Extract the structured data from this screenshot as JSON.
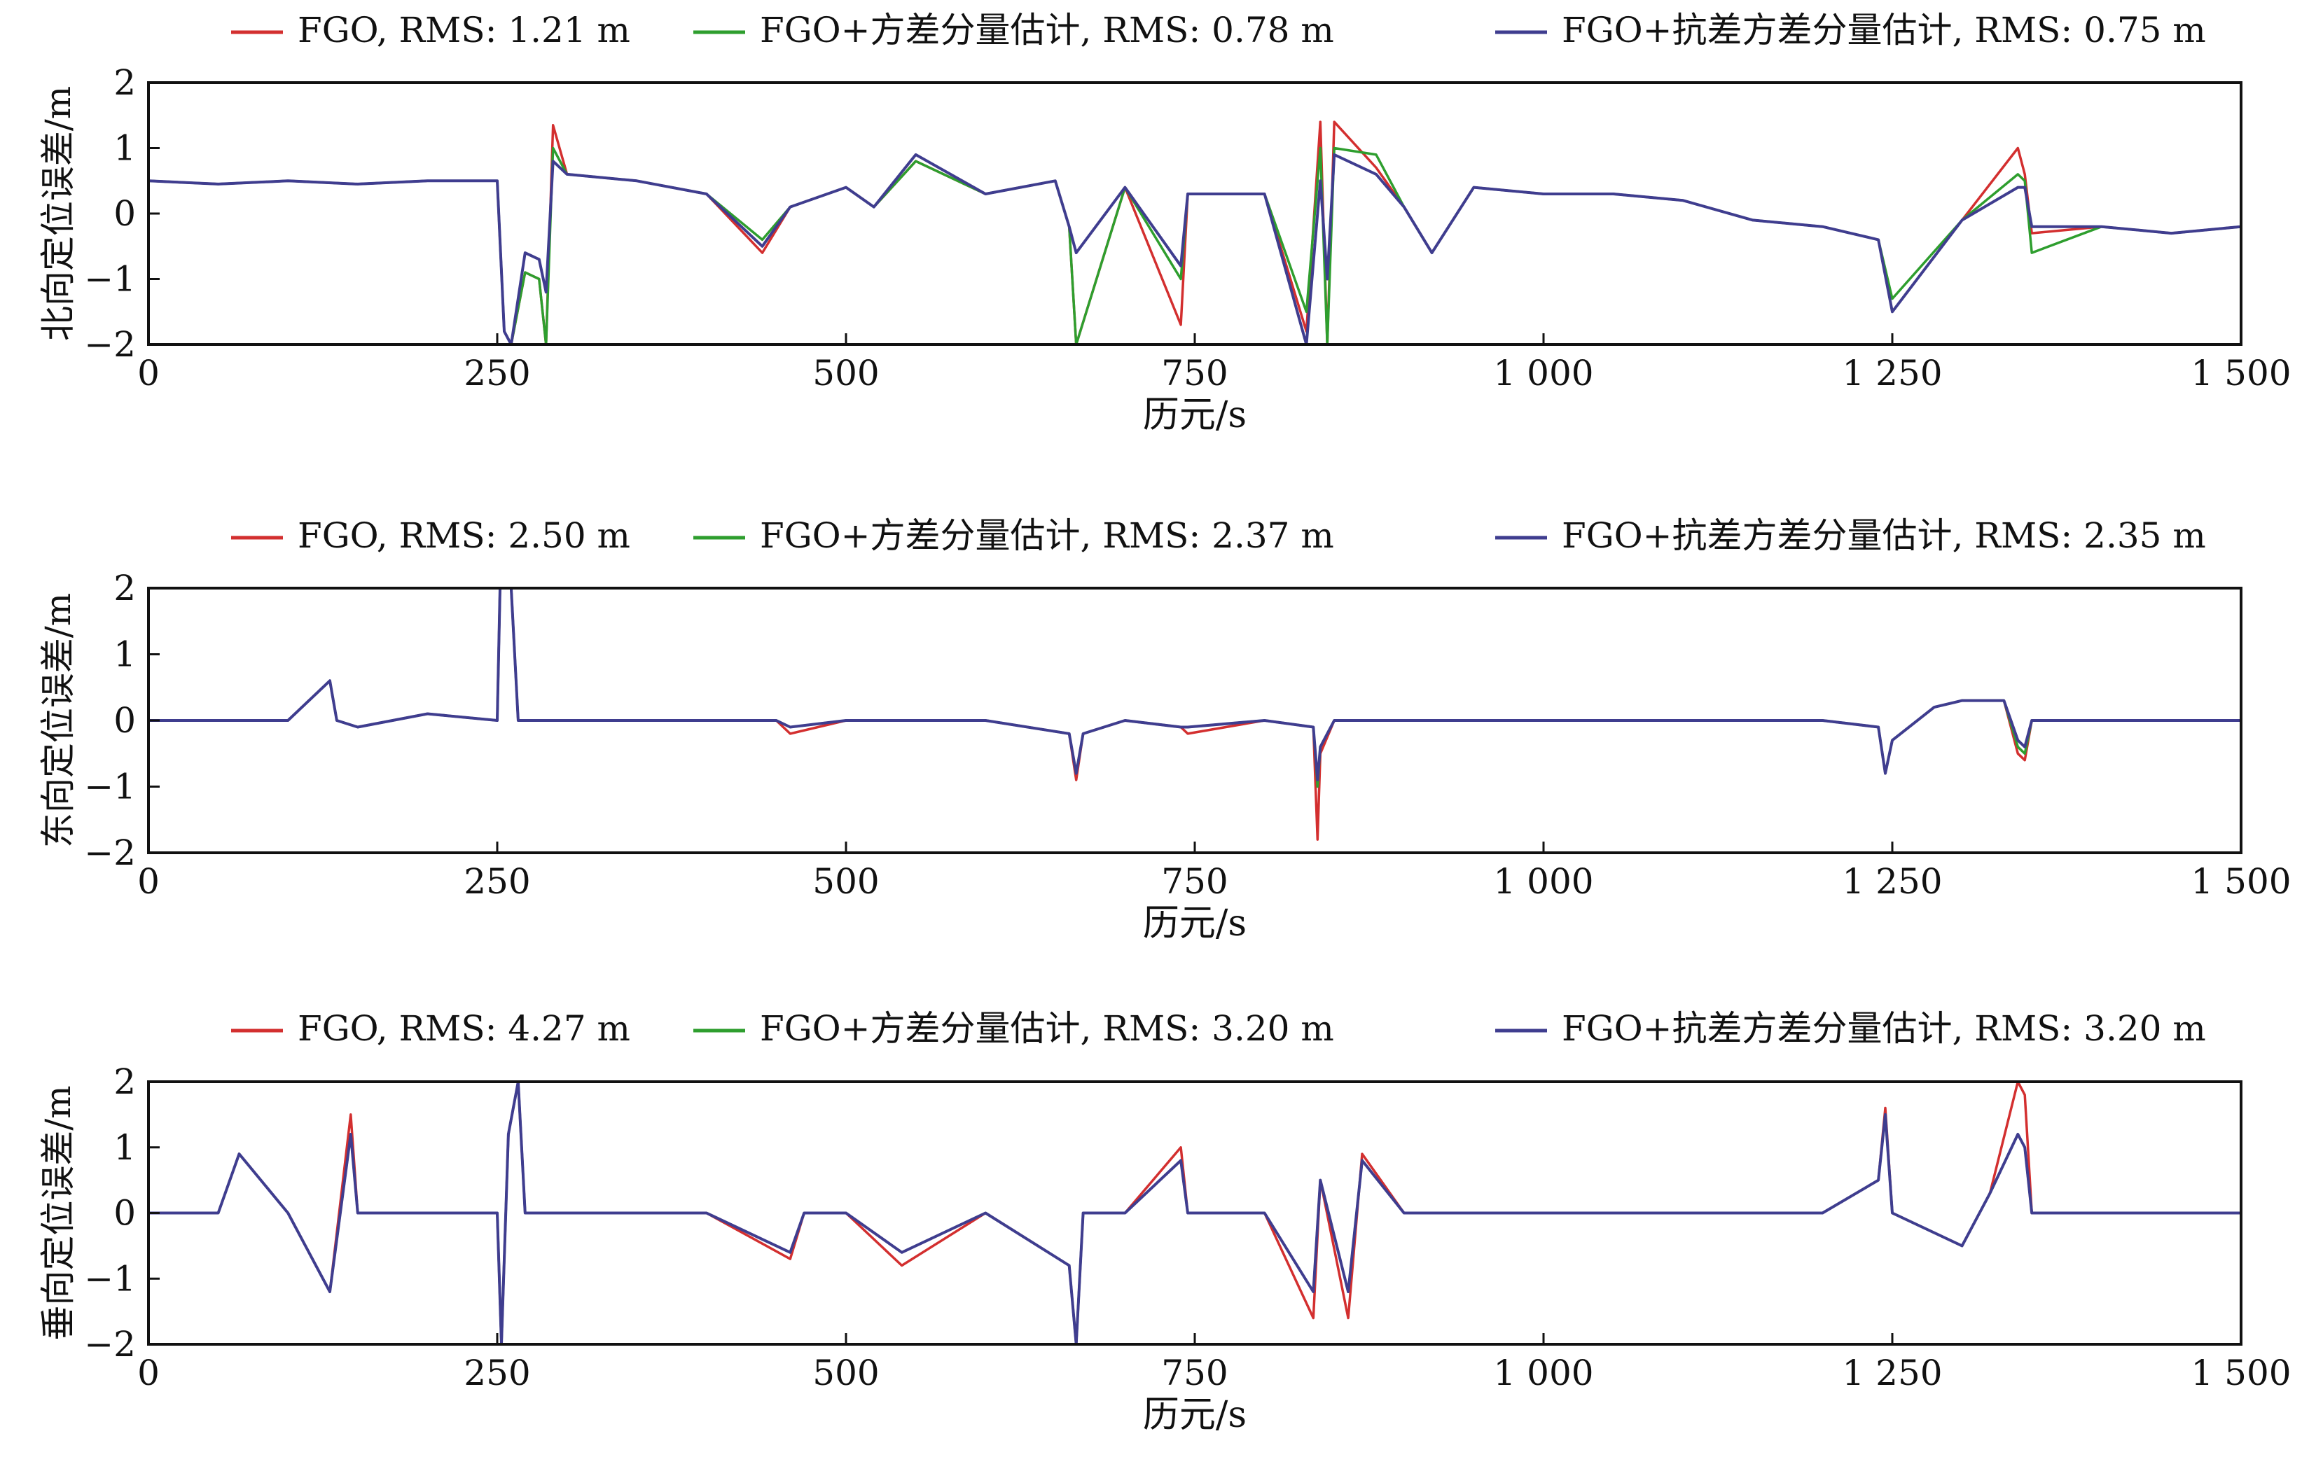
{
  "colors": {
    "FGO": "#d32f2f",
    "VCE": "#2e9e2e",
    "RVCE": "#3f3d8f",
    "axis": "#111111"
  },
  "chart_data": [
    {
      "type": "line",
      "panel": "north",
      "ylabel": "北向定位误差/m",
      "xlabel": "历元/s",
      "xlim": [
        0,
        1500
      ],
      "ylim": [
        -2,
        2
      ],
      "xticks": [
        0,
        250,
        500,
        750,
        1000,
        1250,
        1500
      ],
      "xtick_labels": [
        "0",
        "250",
        "500",
        "750",
        "1 000",
        "1 250",
        "1 500"
      ],
      "yticks": [
        -2,
        -1,
        0,
        1,
        2
      ],
      "ytick_labels": [
        "−2",
        "−1",
        "0",
        "1",
        "2"
      ],
      "legend_position": "top",
      "series": [
        {
          "name": "FGO, RMS: 1.21 m",
          "x": [
            0,
            50,
            100,
            150,
            200,
            250,
            255,
            260,
            270,
            280,
            285,
            290,
            300,
            350,
            400,
            440,
            460,
            500,
            520,
            550,
            600,
            650,
            660,
            665,
            700,
            740,
            745,
            800,
            830,
            840,
            845,
            850,
            880,
            900,
            920,
            950,
            1000,
            1050,
            1100,
            1150,
            1200,
            1240,
            1250,
            1300,
            1340,
            1345,
            1350,
            1400,
            1450,
            1500
          ],
          "y": [
            0.5,
            0.45,
            0.5,
            0.45,
            0.5,
            0.5,
            -1.8,
            -2,
            -0.9,
            -1.0,
            -2,
            1.35,
            0.6,
            0.5,
            0.3,
            -0.6,
            0.1,
            0.4,
            0.1,
            0.8,
            0.3,
            0.5,
            -0.2,
            -2,
            0.4,
            -1.7,
            0.3,
            0.3,
            -1.8,
            1.4,
            -2,
            1.4,
            0.7,
            0.1,
            -0.6,
            0.4,
            0.3,
            0.3,
            0.2,
            -0.1,
            -0.2,
            -0.4,
            -1.5,
            -0.1,
            1.0,
            0.6,
            -0.3,
            -0.2,
            -0.3,
            -0.2
          ]
        },
        {
          "name": "FGO+方差分量估计, RMS: 0.78 m",
          "x": [
            0,
            50,
            100,
            150,
            200,
            250,
            255,
            260,
            270,
            280,
            285,
            290,
            300,
            350,
            400,
            440,
            460,
            500,
            520,
            550,
            600,
            650,
            660,
            665,
            700,
            740,
            745,
            800,
            830,
            840,
            845,
            850,
            880,
            900,
            920,
            950,
            1000,
            1050,
            1100,
            1150,
            1200,
            1240,
            1250,
            1300,
            1340,
            1345,
            1350,
            1400,
            1450,
            1500
          ],
          "y": [
            0.5,
            0.45,
            0.5,
            0.45,
            0.5,
            0.5,
            -1.8,
            -2,
            -0.9,
            -1.0,
            -2,
            1.0,
            0.6,
            0.5,
            0.3,
            -0.4,
            0.1,
            0.4,
            0.1,
            0.8,
            0.3,
            0.5,
            -0.2,
            -2,
            0.4,
            -1.0,
            0.3,
            0.3,
            -1.5,
            1.0,
            -2,
            1.0,
            0.9,
            0.1,
            -0.6,
            0.4,
            0.3,
            0.3,
            0.2,
            -0.1,
            -0.2,
            -0.4,
            -1.3,
            -0.1,
            0.6,
            0.5,
            -0.6,
            -0.2,
            -0.3,
            -0.2
          ]
        },
        {
          "name": "FGO+抗差方差分量估计, RMS: 0.75 m",
          "x": [
            0,
            50,
            100,
            150,
            200,
            250,
            255,
            260,
            270,
            280,
            285,
            290,
            300,
            350,
            400,
            440,
            460,
            500,
            520,
            550,
            600,
            650,
            660,
            665,
            700,
            740,
            745,
            800,
            830,
            840,
            845,
            850,
            880,
            900,
            920,
            950,
            1000,
            1050,
            1100,
            1150,
            1200,
            1240,
            1250,
            1300,
            1340,
            1345,
            1350,
            1400,
            1450,
            1500
          ],
          "y": [
            0.5,
            0.45,
            0.5,
            0.45,
            0.5,
            0.5,
            -1.8,
            -2,
            -0.6,
            -0.7,
            -1.2,
            0.8,
            0.6,
            0.5,
            0.3,
            -0.5,
            0.1,
            0.4,
            0.1,
            0.9,
            0.3,
            0.5,
            -0.2,
            -0.6,
            0.4,
            -0.8,
            0.3,
            0.3,
            -2,
            0.5,
            -1.0,
            0.9,
            0.6,
            0.1,
            -0.6,
            0.4,
            0.3,
            0.3,
            0.2,
            -0.1,
            -0.2,
            -0.4,
            -1.5,
            -0.1,
            0.4,
            0.4,
            -0.2,
            -0.2,
            -0.3,
            -0.2
          ]
        }
      ]
    },
    {
      "type": "line",
      "panel": "east",
      "ylabel": "东向定位误差/m",
      "xlabel": "历元/s",
      "xlim": [
        0,
        1500
      ],
      "ylim": [
        -2,
        2
      ],
      "xticks": [
        0,
        250,
        500,
        750,
        1000,
        1250,
        1500
      ],
      "xtick_labels": [
        "0",
        "250",
        "500",
        "750",
        "1 000",
        "1 250",
        "1 500"
      ],
      "yticks": [
        -2,
        -1,
        0,
        1,
        2
      ],
      "ytick_labels": [
        "−2",
        "−1",
        "0",
        "1",
        "2"
      ],
      "legend_position": "top",
      "series": [
        {
          "name": "FGO, RMS: 2.50 m",
          "x": [
            0,
            50,
            100,
            130,
            135,
            150,
            200,
            250,
            252,
            260,
            265,
            270,
            300,
            400,
            450,
            460,
            500,
            600,
            660,
            665,
            670,
            700,
            740,
            745,
            800,
            835,
            838,
            840,
            850,
            900,
            1000,
            1100,
            1200,
            1240,
            1245,
            1250,
            1280,
            1300,
            1330,
            1340,
            1345,
            1350,
            1360,
            1400,
            1450,
            1500
          ],
          "y": [
            0,
            0,
            0,
            0.6,
            0,
            -0.1,
            0.1,
            0,
            2,
            2,
            0,
            0,
            0,
            0,
            0,
            -0.2,
            0,
            0,
            -0.2,
            -0.9,
            -0.2,
            0,
            -0.1,
            -0.2,
            0,
            -0.1,
            -1.8,
            -0.5,
            0,
            0,
            0,
            0,
            0,
            -0.1,
            -0.8,
            -0.3,
            0.2,
            0.3,
            0.3,
            -0.5,
            -0.6,
            0,
            0,
            0,
            0,
            0
          ]
        },
        {
          "name": "FGO+方差分量估计, RMS: 2.37 m",
          "x": [
            0,
            50,
            100,
            130,
            135,
            150,
            200,
            250,
            252,
            260,
            265,
            270,
            300,
            400,
            450,
            460,
            500,
            600,
            660,
            665,
            670,
            700,
            740,
            745,
            800,
            835,
            838,
            840,
            850,
            900,
            1000,
            1100,
            1200,
            1240,
            1245,
            1250,
            1280,
            1300,
            1330,
            1340,
            1345,
            1350,
            1360,
            1400,
            1450,
            1500
          ],
          "y": [
            0,
            0,
            0,
            0.6,
            0,
            -0.1,
            0.1,
            0,
            2,
            2,
            0,
            0,
            0,
            0,
            0,
            -0.1,
            0,
            0,
            -0.2,
            -0.8,
            -0.2,
            0,
            -0.1,
            -0.1,
            0,
            -0.1,
            -1.0,
            -0.4,
            0,
            0,
            0,
            0,
            0,
            -0.1,
            -0.8,
            -0.3,
            0.2,
            0.3,
            0.3,
            -0.4,
            -0.5,
            0,
            0,
            0,
            0,
            0
          ]
        },
        {
          "name": "FGO+抗差方差分量估计, RMS: 2.35 m",
          "x": [
            0,
            50,
            100,
            130,
            135,
            150,
            200,
            250,
            252,
            260,
            265,
            270,
            300,
            400,
            450,
            460,
            500,
            600,
            660,
            665,
            670,
            700,
            740,
            745,
            800,
            835,
            838,
            840,
            850,
            900,
            1000,
            1100,
            1200,
            1240,
            1245,
            1250,
            1280,
            1300,
            1330,
            1340,
            1345,
            1350,
            1360,
            1400,
            1450,
            1500
          ],
          "y": [
            0,
            0,
            0,
            0.6,
            0,
            -0.1,
            0.1,
            0,
            2,
            2,
            0,
            0,
            0,
            0,
            0,
            -0.1,
            0,
            0,
            -0.2,
            -0.8,
            -0.2,
            0,
            -0.1,
            -0.1,
            0,
            -0.1,
            -0.9,
            -0.4,
            0,
            0,
            0,
            0,
            0,
            -0.1,
            -0.8,
            -0.3,
            0.2,
            0.3,
            0.3,
            -0.3,
            -0.4,
            0,
            0,
            0,
            0,
            0
          ]
        }
      ]
    },
    {
      "type": "line",
      "panel": "vertical",
      "ylabel": "垂向定位误差/m",
      "xlabel": "历元/s",
      "xlim": [
        0,
        1500
      ],
      "ylim": [
        -2,
        2
      ],
      "xticks": [
        0,
        250,
        500,
        750,
        1000,
        1250,
        1500
      ],
      "xtick_labels": [
        "0",
        "250",
        "500",
        "750",
        "1 000",
        "1 250",
        "1 500"
      ],
      "yticks": [
        -2,
        -1,
        0,
        1,
        2
      ],
      "ytick_labels": [
        "−2",
        "−1",
        "0",
        "1",
        "2"
      ],
      "legend_position": "top",
      "series": [
        {
          "name": "FGO, RMS: 4.27 m",
          "x": [
            0,
            50,
            65,
            100,
            130,
            145,
            150,
            200,
            250,
            253,
            258,
            265,
            270,
            300,
            400,
            460,
            470,
            500,
            540,
            600,
            660,
            665,
            670,
            700,
            740,
            745,
            800,
            835,
            840,
            860,
            870,
            900,
            1000,
            1100,
            1200,
            1240,
            1245,
            1250,
            1300,
            1320,
            1340,
            1345,
            1350,
            1400,
            1450,
            1500
          ],
          "y": [
            0,
            0,
            0.9,
            0,
            -1.2,
            1.5,
            0,
            0,
            0,
            -2,
            1.2,
            2,
            0,
            0,
            0,
            -0.7,
            0,
            0,
            -0.8,
            0,
            -0.8,
            -2,
            0,
            0,
            1.0,
            0,
            0,
            -1.6,
            0.5,
            -1.6,
            0.9,
            0,
            0,
            0,
            0,
            0.5,
            1.6,
            0,
            -0.5,
            0.3,
            2,
            1.8,
            0,
            0,
            0,
            0
          ]
        },
        {
          "name": "FGO+方差分量估计, RMS: 3.20 m",
          "x": [
            0,
            50,
            65,
            100,
            130,
            145,
            150,
            200,
            250,
            253,
            258,
            265,
            270,
            300,
            400,
            460,
            470,
            500,
            540,
            600,
            660,
            665,
            670,
            700,
            740,
            745,
            800,
            835,
            840,
            860,
            870,
            900,
            1000,
            1100,
            1200,
            1240,
            1245,
            1250,
            1300,
            1320,
            1340,
            1345,
            1350,
            1400,
            1450,
            1500
          ],
          "y": [
            0,
            0,
            0.9,
            0,
            -1.2,
            1.2,
            0,
            0,
            0,
            -2,
            1.2,
            2,
            0,
            0,
            0,
            -0.6,
            0,
            0,
            -0.6,
            0,
            -0.8,
            -2,
            0,
            0,
            0.8,
            0,
            0,
            -1.2,
            0.5,
            -1.2,
            0.8,
            0,
            0,
            0,
            0,
            0.5,
            1.5,
            0,
            -0.5,
            0.3,
            1.2,
            1.0,
            0,
            0,
            0,
            0
          ]
        },
        {
          "name": "FGO+抗差方差分量估计, RMS: 3.20 m",
          "x": [
            0,
            50,
            65,
            100,
            130,
            145,
            150,
            200,
            250,
            253,
            258,
            265,
            270,
            300,
            400,
            460,
            470,
            500,
            540,
            600,
            660,
            665,
            670,
            700,
            740,
            745,
            800,
            835,
            840,
            860,
            870,
            900,
            1000,
            1100,
            1200,
            1240,
            1245,
            1250,
            1300,
            1320,
            1340,
            1345,
            1350,
            1400,
            1450,
            1500
          ],
          "y": [
            0,
            0,
            0.9,
            0,
            -1.2,
            1.2,
            0,
            0,
            0,
            -2,
            1.2,
            2,
            0,
            0,
            0,
            -0.6,
            0,
            0,
            -0.6,
            0,
            -0.8,
            -2,
            0,
            0,
            0.8,
            0,
            0,
            -1.2,
            0.5,
            -1.2,
            0.8,
            0,
            0,
            0,
            0,
            0.5,
            1.5,
            0,
            -0.5,
            0.3,
            1.2,
            1.0,
            0,
            0,
            0,
            0
          ]
        }
      ]
    }
  ]
}
